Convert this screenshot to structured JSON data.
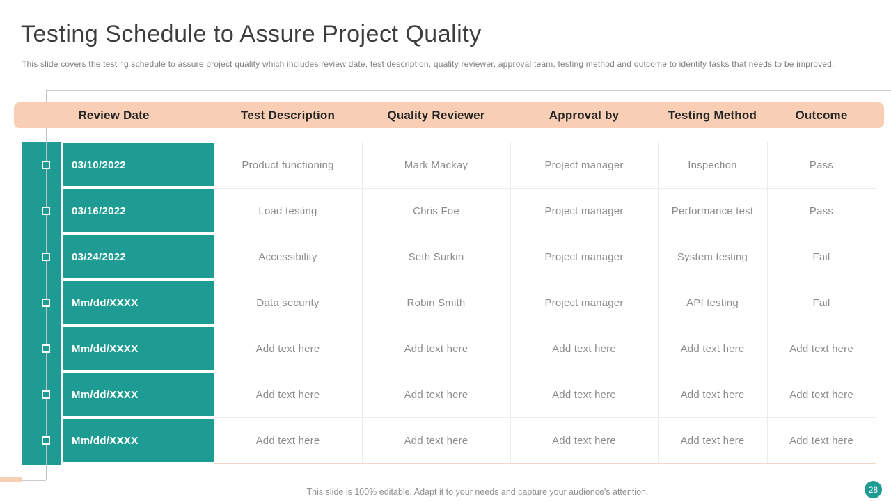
{
  "slide": {
    "title": "Testing Schedule to Assure Project Quality",
    "subtitle": "This slide covers the testing schedule to assure project quality which includes review date, test description, quality reviewer, approval team, testing method and outcome to identify tasks that needs to be improved.",
    "footer": "This slide is 100% editable. Adapt it to your needs and capture your audience's attention.",
    "page_number": "28"
  },
  "colors": {
    "teal": "#1e9c94",
    "header_peach": "#f8cfb5",
    "outer_border_peach": "#f2d8c4",
    "grid_line": "#ececec",
    "body_text_gray": "#8c8c8c",
    "title_gray": "#3d3d3d"
  },
  "table": {
    "columns": [
      "Review Date",
      "Test Description",
      "Quality Reviewer",
      "Approval by",
      "Testing Method",
      "Outcome"
    ],
    "rows": [
      {
        "review_date": "03/10/2022",
        "cells": [
          "Product functioning",
          "Mark Mackay",
          "Project manager",
          "Inspection",
          "Pass"
        ]
      },
      {
        "review_date": "03/16/2022",
        "cells": [
          "Load testing",
          "Chris Foe",
          "Project manager",
          "Performance test",
          "Pass"
        ]
      },
      {
        "review_date": "03/24/2022",
        "cells": [
          "Accessibility",
          "Seth Surkin",
          "Project manager",
          "System testing",
          "Fail"
        ]
      },
      {
        "review_date": "Mm/dd/XXXX",
        "cells": [
          "Data security",
          "Robin Smith",
          "Project manager",
          "API testing",
          "Fail"
        ]
      },
      {
        "review_date": "Mm/dd/XXXX",
        "cells": [
          "Add text here",
          "Add text here",
          "Add text here",
          "Add text here",
          "Add text here"
        ]
      },
      {
        "review_date": "Mm/dd/XXXX",
        "cells": [
          "Add text here",
          "Add text here",
          "Add text here",
          "Add text here",
          "Add text here"
        ]
      },
      {
        "review_date": "Mm/dd/XXXX",
        "cells": [
          "Add text here",
          "Add text here",
          "Add text here",
          "Add text here",
          "Add text here"
        ]
      }
    ]
  }
}
